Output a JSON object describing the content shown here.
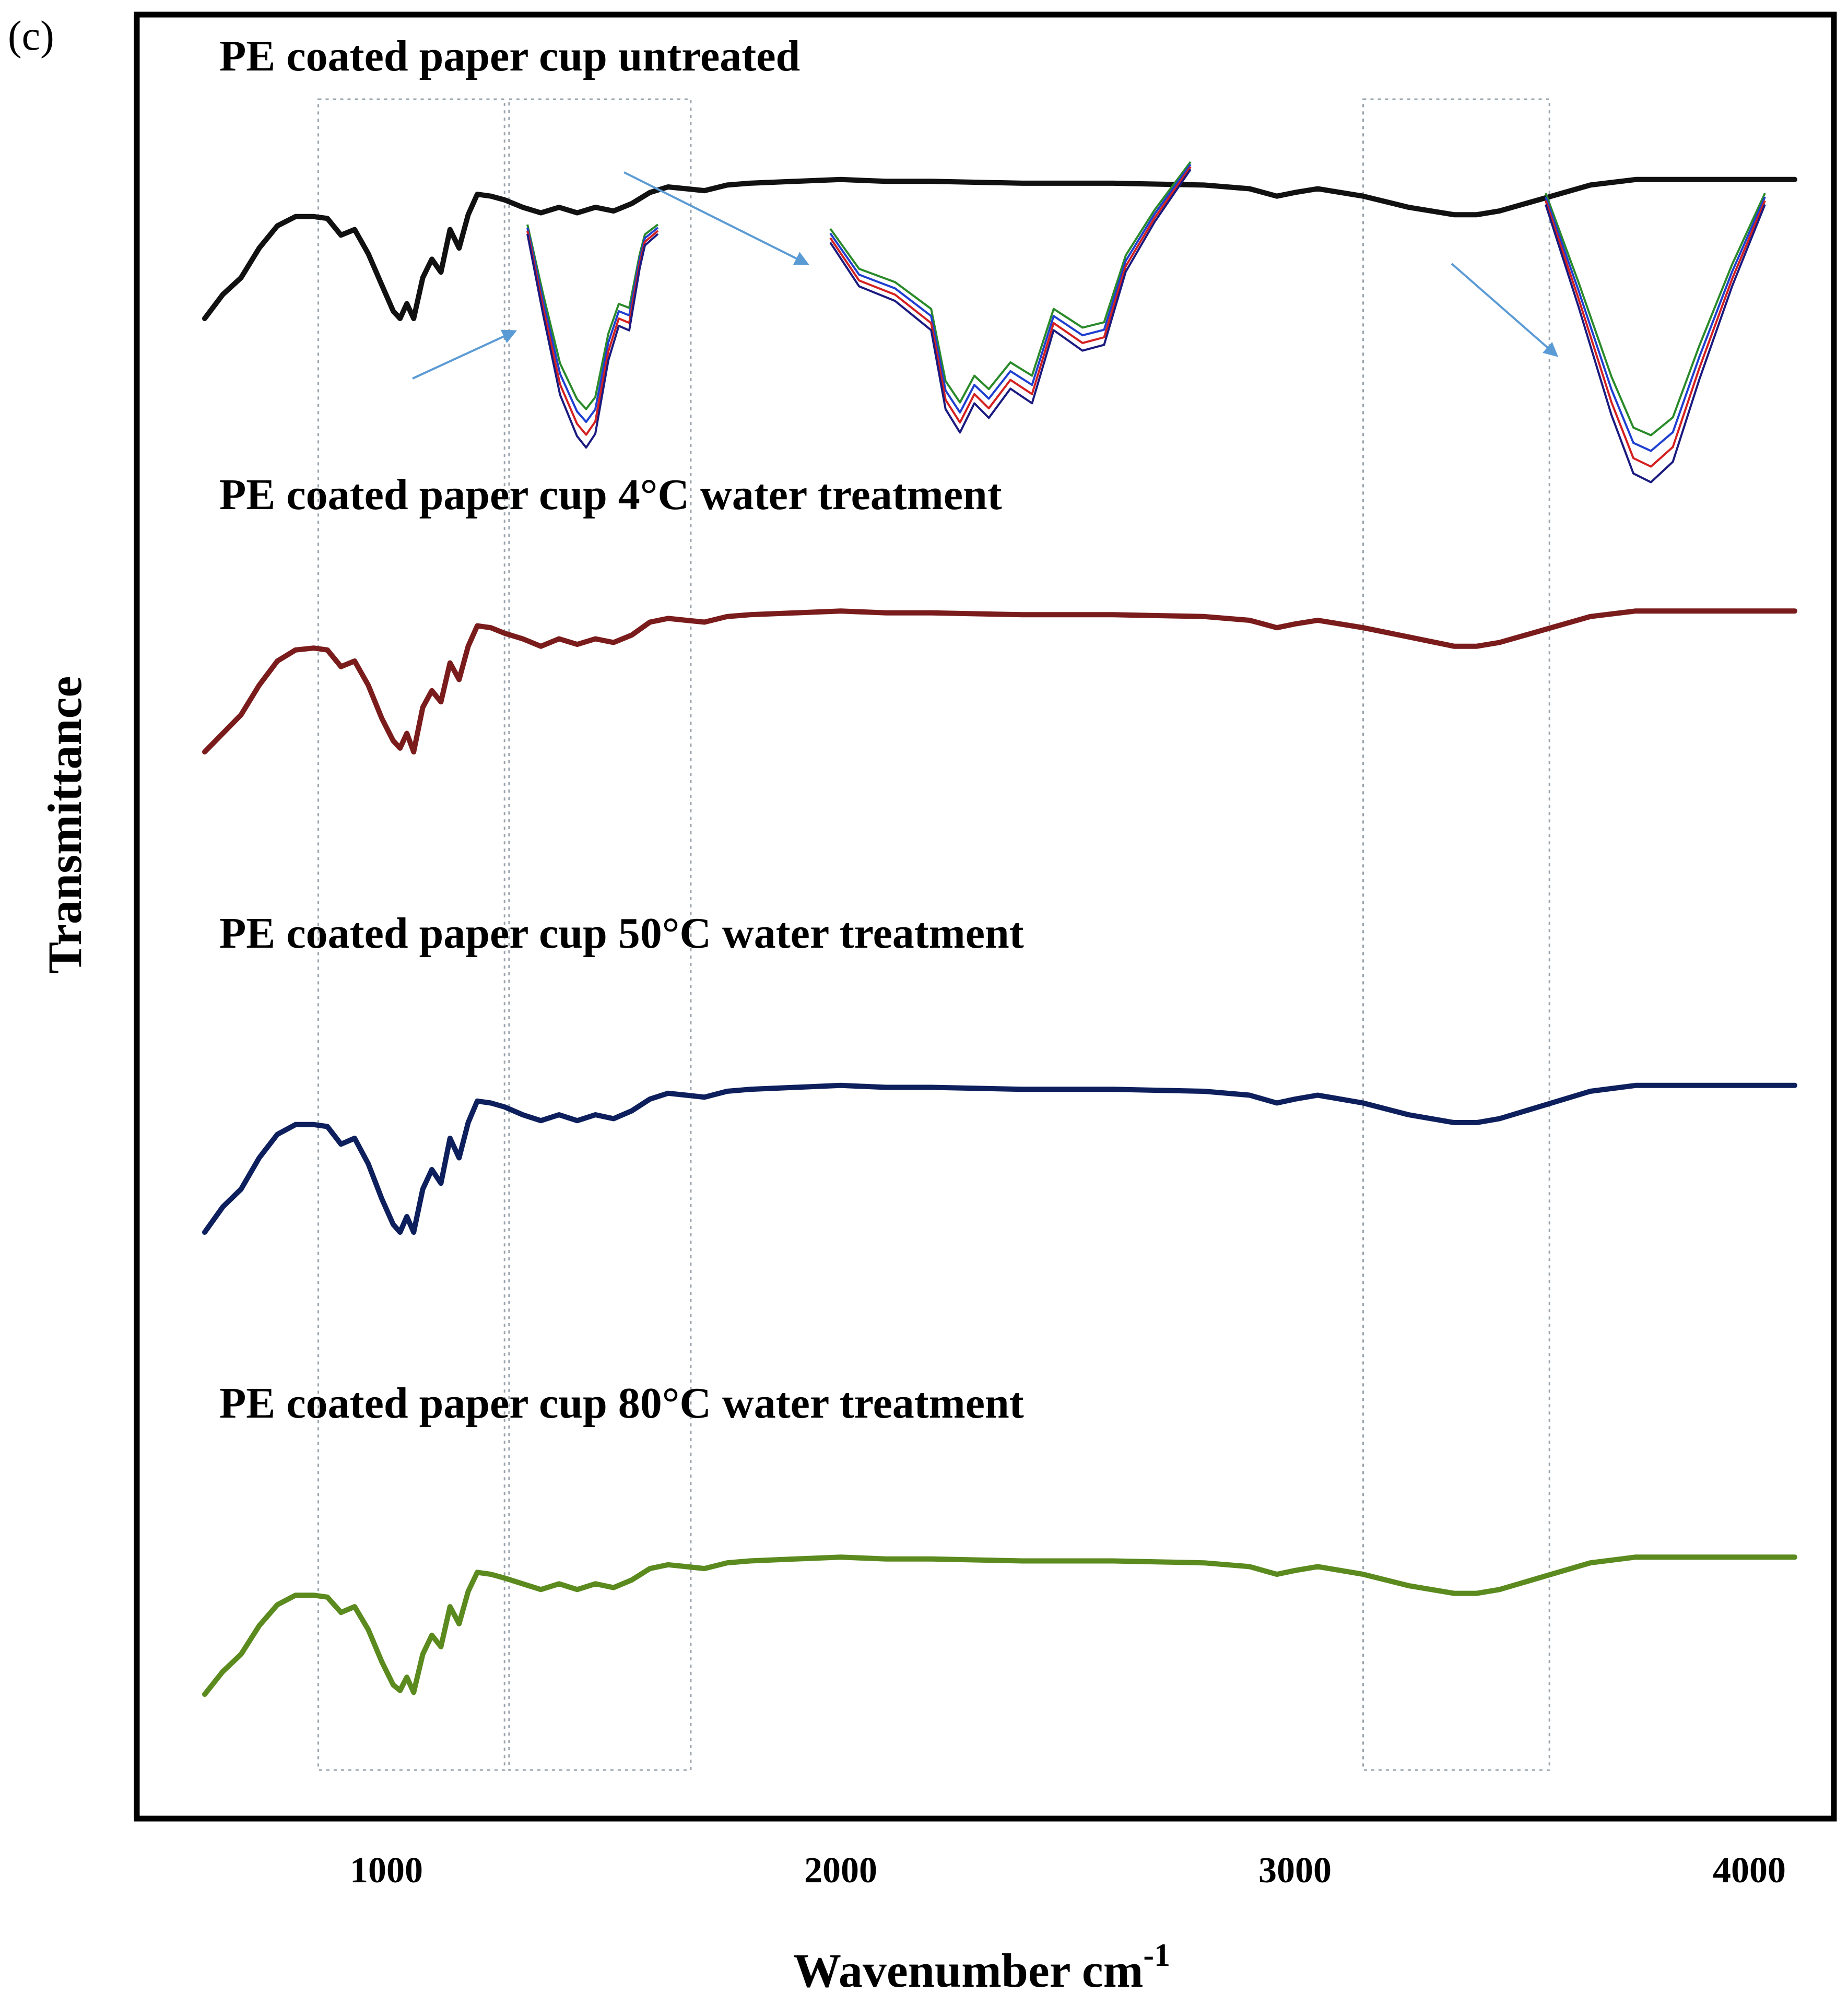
{
  "chart_data": {
    "type": "line",
    "panel_label": "(c)",
    "xlabel": "Wavenumber  cm",
    "xlabel_sup": "-1",
    "ylabel": "Transmittance",
    "xlim": [
      550,
      4150
    ],
    "x_ticks": [
      "1000",
      "2000",
      "3000",
      "4000"
    ],
    "x_tick_values": [
      1000,
      2000,
      3000,
      4000
    ],
    "y_scale": "arbitrary, curves offset vertically",
    "highlight_regions_cm1": [
      [
        850,
        1260
      ],
      [
        1270,
        1670
      ],
      [
        3150,
        3560
      ]
    ],
    "series": [
      {
        "name": "PE coated paper cup untreated",
        "color": "#111111",
        "x": [
          600,
          640,
          680,
          720,
          760,
          800,
          840,
          870,
          900,
          930,
          960,
          990,
          1015,
          1030,
          1045,
          1060,
          1080,
          1100,
          1120,
          1140,
          1160,
          1180,
          1200,
          1230,
          1260,
          1300,
          1340,
          1380,
          1420,
          1460,
          1500,
          1540,
          1580,
          1620,
          1660,
          1700,
          1750,
          1800,
          1900,
          2000,
          2100,
          2200,
          2400,
          2600,
          2800,
          2900,
          2930,
          2960,
          3000,
          3050,
          3150,
          3250,
          3350,
          3400,
          3450,
          3550,
          3650,
          3750,
          3900,
          4000,
          4100
        ],
        "values": [
          0.0,
          0.13,
          0.22,
          0.38,
          0.5,
          0.55,
          0.55,
          0.54,
          0.45,
          0.48,
          0.35,
          0.18,
          0.04,
          0.0,
          0.08,
          0.0,
          0.22,
          0.32,
          0.25,
          0.48,
          0.38,
          0.56,
          0.67,
          0.66,
          0.64,
          0.6,
          0.57,
          0.6,
          0.57,
          0.6,
          0.58,
          0.62,
          0.68,
          0.71,
          0.7,
          0.69,
          0.72,
          0.73,
          0.74,
          0.75,
          0.74,
          0.74,
          0.73,
          0.73,
          0.72,
          0.7,
          0.68,
          0.66,
          0.68,
          0.7,
          0.66,
          0.6,
          0.56,
          0.56,
          0.58,
          0.65,
          0.72,
          0.75,
          0.75,
          0.75,
          0.75
        ]
      },
      {
        "name": "PE coated paper cup 4°C water treatment",
        "color": "#7b1c1c",
        "x": [
          600,
          640,
          680,
          720,
          760,
          800,
          840,
          870,
          900,
          930,
          960,
          990,
          1015,
          1030,
          1045,
          1060,
          1080,
          1100,
          1120,
          1140,
          1160,
          1180,
          1200,
          1230,
          1260,
          1300,
          1340,
          1380,
          1420,
          1460,
          1500,
          1540,
          1580,
          1620,
          1660,
          1700,
          1750,
          1800,
          1900,
          2000,
          2100,
          2200,
          2400,
          2600,
          2800,
          2900,
          2930,
          2960,
          3000,
          3050,
          3150,
          3250,
          3350,
          3400,
          3450,
          3550,
          3650,
          3750,
          3900,
          4000,
          4100
        ],
        "values": [
          0.0,
          0.1,
          0.2,
          0.36,
          0.49,
          0.55,
          0.56,
          0.55,
          0.46,
          0.49,
          0.36,
          0.18,
          0.06,
          0.02,
          0.1,
          0.0,
          0.24,
          0.33,
          0.27,
          0.48,
          0.39,
          0.57,
          0.68,
          0.67,
          0.64,
          0.61,
          0.57,
          0.61,
          0.58,
          0.61,
          0.59,
          0.63,
          0.7,
          0.72,
          0.71,
          0.7,
          0.73,
          0.74,
          0.75,
          0.76,
          0.75,
          0.75,
          0.74,
          0.74,
          0.73,
          0.71,
          0.69,
          0.67,
          0.69,
          0.71,
          0.67,
          0.62,
          0.57,
          0.57,
          0.59,
          0.66,
          0.73,
          0.76,
          0.76,
          0.76,
          0.76
        ]
      },
      {
        "name": "PE coated paper cup 50°C water treatment",
        "color": "#0d1f5c",
        "x": [
          600,
          640,
          680,
          720,
          760,
          800,
          840,
          870,
          900,
          930,
          960,
          990,
          1015,
          1030,
          1045,
          1060,
          1080,
          1100,
          1120,
          1140,
          1160,
          1180,
          1200,
          1230,
          1260,
          1300,
          1340,
          1380,
          1420,
          1460,
          1500,
          1540,
          1580,
          1620,
          1660,
          1700,
          1750,
          1800,
          1900,
          2000,
          2100,
          2200,
          2400,
          2600,
          2800,
          2900,
          2930,
          2960,
          3000,
          3050,
          3150,
          3250,
          3350,
          3400,
          3450,
          3550,
          3650,
          3750,
          3900,
          4000,
          4100
        ],
        "values": [
          0.0,
          0.13,
          0.22,
          0.38,
          0.5,
          0.55,
          0.55,
          0.54,
          0.45,
          0.48,
          0.35,
          0.17,
          0.04,
          0.0,
          0.08,
          0.0,
          0.22,
          0.32,
          0.25,
          0.48,
          0.38,
          0.56,
          0.67,
          0.66,
          0.64,
          0.6,
          0.57,
          0.6,
          0.57,
          0.6,
          0.58,
          0.62,
          0.68,
          0.71,
          0.7,
          0.69,
          0.72,
          0.73,
          0.74,
          0.75,
          0.74,
          0.74,
          0.73,
          0.73,
          0.72,
          0.7,
          0.68,
          0.66,
          0.68,
          0.7,
          0.66,
          0.6,
          0.56,
          0.56,
          0.58,
          0.65,
          0.72,
          0.75,
          0.75,
          0.75,
          0.75
        ]
      },
      {
        "name": "PE coated paper cup 80°C water treatment",
        "color": "#5b8a1e",
        "x": [
          600,
          640,
          680,
          720,
          760,
          800,
          840,
          870,
          900,
          930,
          960,
          990,
          1015,
          1030,
          1045,
          1060,
          1080,
          1100,
          1120,
          1140,
          1160,
          1180,
          1200,
          1230,
          1260,
          1300,
          1340,
          1380,
          1420,
          1460,
          1500,
          1540,
          1580,
          1620,
          1660,
          1700,
          1750,
          1800,
          1900,
          2000,
          2100,
          2200,
          2400,
          2600,
          2800,
          2900,
          2930,
          2960,
          3000,
          3050,
          3150,
          3250,
          3350,
          3400,
          3450,
          3550,
          3650,
          3750,
          3900,
          4000,
          4100
        ],
        "values": [
          0.0,
          0.12,
          0.21,
          0.36,
          0.47,
          0.52,
          0.52,
          0.51,
          0.43,
          0.46,
          0.34,
          0.17,
          0.05,
          0.02,
          0.09,
          0.01,
          0.21,
          0.31,
          0.25,
          0.46,
          0.37,
          0.54,
          0.64,
          0.63,
          0.61,
          0.58,
          0.55,
          0.58,
          0.55,
          0.58,
          0.56,
          0.6,
          0.66,
          0.68,
          0.67,
          0.66,
          0.69,
          0.7,
          0.71,
          0.72,
          0.71,
          0.71,
          0.7,
          0.7,
          0.69,
          0.67,
          0.65,
          0.63,
          0.65,
          0.67,
          0.63,
          0.57,
          0.53,
          0.53,
          0.55,
          0.62,
          0.69,
          0.72,
          0.72,
          0.72,
          0.72
        ]
      }
    ],
    "insets": [
      {
        "region": "~1000-1200 cm-1 (C-O stretch)",
        "series_colors": [
          "#2a8a2a",
          "#1f3fd0",
          "#d42020",
          "#1a1a80"
        ]
      },
      {
        "region": "~1300-1700 cm-1",
        "series_colors": [
          "#2a8a2a",
          "#1f3fd0",
          "#d42020",
          "#1a1a80"
        ]
      },
      {
        "region": "~3200-3550 cm-1 (O-H stretch)",
        "series_colors": [
          "#2a8a2a",
          "#1f3fd0",
          "#d42020",
          "#1a1a80"
        ]
      }
    ],
    "arrow_color": "#5b9bd5",
    "grid": false,
    "legend": "labels above each curve"
  }
}
